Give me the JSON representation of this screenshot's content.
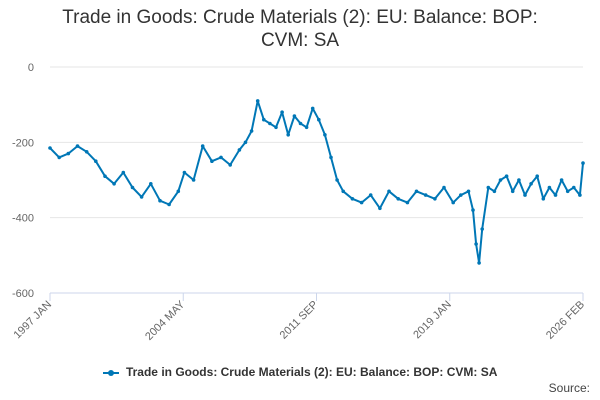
{
  "title_line1": "Trade in Goods: Crude Materials (2): EU: Balance: BOP:",
  "title_line2": "CVM: SA",
  "source_label": "Source:",
  "colors": {
    "series": "#0077b6",
    "grid": "#e6e6e6",
    "axis": "#ccd6eb"
  },
  "chart_data": {
    "type": "line",
    "title": "Trade in Goods: Crude Materials (2): EU: Balance: BOP: CVM: SA",
    "xlabel": "",
    "ylabel": "",
    "x_tick_labels": [
      "1997 JAN",
      "2004 MAY",
      "2011 SEP",
      "2019 JAN",
      "2026 FEB"
    ],
    "y_ticks": [
      0,
      -200,
      -400,
      -600
    ],
    "ylim": [
      -600,
      0
    ],
    "xlim": [
      "1997-01",
      "2026-02"
    ],
    "grid": "horizontal",
    "legend": "bottom-center",
    "series": [
      {
        "name": "Trade in Goods: Crude Materials (2): EU: Balance: BOP: CVM: SA",
        "x": [
          "1997-01",
          "1997-07",
          "1998-01",
          "1998-07",
          "1999-01",
          "1999-07",
          "2000-01",
          "2000-07",
          "2001-01",
          "2001-07",
          "2002-01",
          "2002-07",
          "2003-01",
          "2003-07",
          "2004-01",
          "2004-05",
          "2004-11",
          "2005-05",
          "2005-11",
          "2006-05",
          "2006-11",
          "2007-05",
          "2007-09",
          "2008-01",
          "2008-05",
          "2008-09",
          "2009-01",
          "2009-05",
          "2009-09",
          "2010-01",
          "2010-05",
          "2010-09",
          "2011-01",
          "2011-05",
          "2011-09",
          "2012-01",
          "2012-05",
          "2012-09",
          "2013-01",
          "2013-07",
          "2014-01",
          "2014-07",
          "2015-01",
          "2015-07",
          "2016-01",
          "2016-07",
          "2017-01",
          "2017-07",
          "2018-01",
          "2018-07",
          "2019-01",
          "2019-06",
          "2019-11",
          "2020-02",
          "2020-04",
          "2020-06",
          "2020-08",
          "2020-12",
          "2021-04",
          "2021-08",
          "2021-12",
          "2022-04",
          "2022-08",
          "2022-12",
          "2023-04",
          "2023-08",
          "2023-12",
          "2024-04",
          "2024-08",
          "2024-12",
          "2025-04",
          "2025-08",
          "2025-12",
          "2026-02"
        ],
        "values": [
          -215,
          -240,
          -230,
          -210,
          -225,
          -250,
          -290,
          -310,
          -280,
          -320,
          -345,
          -310,
          -355,
          -365,
          -330,
          -280,
          -300,
          -210,
          -250,
          -240,
          -260,
          -220,
          -200,
          -170,
          -90,
          -140,
          -150,
          -160,
          -120,
          -180,
          -130,
          -150,
          -160,
          -110,
          -140,
          -180,
          -240,
          -300,
          -330,
          -350,
          -360,
          -340,
          -375,
          -330,
          -350,
          -360,
          -330,
          -340,
          -350,
          -320,
          -360,
          -340,
          -330,
          -380,
          -470,
          -520,
          -430,
          -320,
          -330,
          -300,
          -290,
          -330,
          -300,
          -340,
          -310,
          -290,
          -350,
          -320,
          -340,
          -300,
          -330,
          -320,
          -340,
          -255
        ]
      }
    ]
  }
}
